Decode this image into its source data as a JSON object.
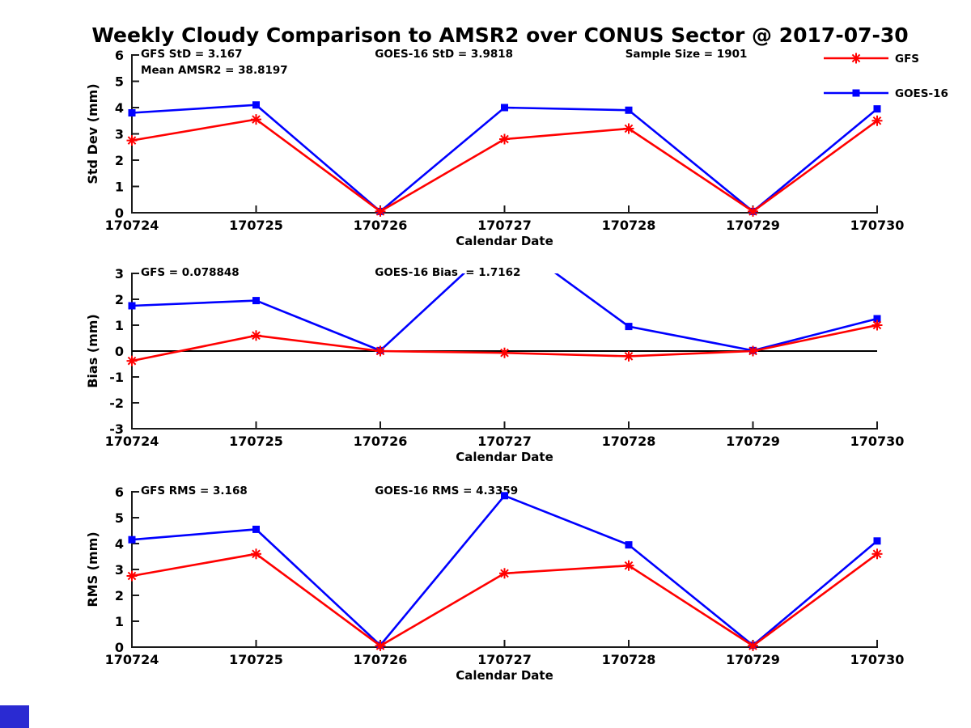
{
  "title": "Weekly Cloudy Comparison to AMSR2 over CONUS Sector @ 2017-07-30",
  "colors": {
    "gfs": "#ff0000",
    "goes16": "#0000ff",
    "axis": "#1a1a1a",
    "zero_line": "#000000",
    "corner_square": "#2a2ad2"
  },
  "legend": {
    "items": [
      {
        "label": "GFS",
        "color": "#ff0000",
        "marker": "asterisk-marker-icon"
      },
      {
        "label": "GOES-16",
        "color": "#0000ff",
        "marker": "square-marker-icon"
      }
    ]
  },
  "chart_data": [
    {
      "type": "line",
      "title": "",
      "ylabel": "Std Dev (mm)",
      "xlabel": "Calendar Date",
      "categories": [
        "170724",
        "170725",
        "170726",
        "170727",
        "170728",
        "170729",
        "170730"
      ],
      "ylim": [
        0,
        6
      ],
      "yticks": [
        0,
        1,
        2,
        3,
        4,
        5,
        6
      ],
      "grid": false,
      "show_legend": true,
      "annotations": [
        {
          "text": "GFS StD = 3.167",
          "fx": 0.012,
          "row": 0
        },
        {
          "text": "Mean AMSR2 = 38.8197",
          "fx": 0.012,
          "row": 1
        },
        {
          "text": "GOES-16 StD = 3.9818",
          "fx": 0.326,
          "row": 0
        },
        {
          "text": "Sample Size = 1901",
          "fx": 0.662,
          "row": 0
        }
      ],
      "series": [
        {
          "name": "GFS",
          "color": "#ff0000",
          "marker": "asterisk",
          "values": [
            2.75,
            3.55,
            0.05,
            2.8,
            3.2,
            0.05,
            3.5
          ]
        },
        {
          "name": "GOES-16",
          "color": "#0000ff",
          "marker": "square",
          "values": [
            3.8,
            4.1,
            0.05,
            4.0,
            3.9,
            0.05,
            3.95
          ]
        }
      ]
    },
    {
      "type": "line",
      "title": "",
      "ylabel": "Bias (mm)",
      "xlabel": "Calendar Date",
      "categories": [
        "170724",
        "170725",
        "170726",
        "170727",
        "170728",
        "170729",
        "170730"
      ],
      "ylim": [
        -3,
        3
      ],
      "yticks": [
        -3,
        -2,
        -1,
        0,
        1,
        2,
        3
      ],
      "grid": false,
      "zero_line": true,
      "show_legend": false,
      "annotations": [
        {
          "text": "GFS = 0.078848",
          "fx": 0.012,
          "row": 0
        },
        {
          "text": "GOES-16 Bias  = 1.7162",
          "fx": 0.326,
          "row": 0
        }
      ],
      "series": [
        {
          "name": "GFS",
          "color": "#ff0000",
          "marker": "asterisk",
          "values": [
            -0.38,
            0.6,
            0.0,
            -0.07,
            -0.2,
            0.0,
            1.0
          ]
        },
        {
          "name": "GOES-16",
          "color": "#0000ff",
          "marker": "square",
          "values": [
            1.75,
            1.95,
            0.02,
            4.45,
            0.95,
            0.02,
            1.25
          ]
        }
      ]
    },
    {
      "type": "line",
      "title": "",
      "ylabel": "RMS (mm)",
      "xlabel": "Calendar Date",
      "categories": [
        "170724",
        "170725",
        "170726",
        "170727",
        "170728",
        "170729",
        "170730"
      ],
      "ylim": [
        0,
        6
      ],
      "yticks": [
        0,
        1,
        2,
        3,
        4,
        5,
        6
      ],
      "grid": false,
      "show_legend": false,
      "annotations": [
        {
          "text": "GFS RMS = 3.168",
          "fx": 0.012,
          "row": 0
        },
        {
          "text": "GOES-16 RMS = 4.3359",
          "fx": 0.326,
          "row": 0
        }
      ],
      "series": [
        {
          "name": "GFS",
          "color": "#ff0000",
          "marker": "asterisk",
          "values": [
            2.75,
            3.6,
            0.05,
            2.85,
            3.15,
            0.05,
            3.6
          ]
        },
        {
          "name": "GOES-16",
          "color": "#0000ff",
          "marker": "square",
          "values": [
            4.15,
            4.55,
            0.07,
            5.85,
            3.95,
            0.07,
            4.1
          ]
        }
      ]
    }
  ]
}
